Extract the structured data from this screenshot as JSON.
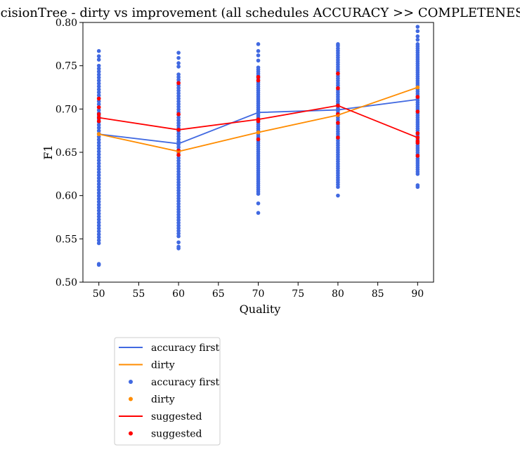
{
  "chart_data": {
    "type": "scatter",
    "title": "DecisionTree - dirty vs improvement (all schedules ACCURACY >> COMPLETENESS)",
    "xlabel": "Quality",
    "ylabel": "F1",
    "xlim": [
      48,
      92
    ],
    "ylim": [
      0.5,
      0.8
    ],
    "xticks": [
      50,
      55,
      60,
      65,
      70,
      75,
      80,
      85,
      90
    ],
    "yticks": [
      0.5,
      0.55,
      0.6,
      0.65,
      0.7,
      0.75,
      0.8
    ],
    "grid": false,
    "legend_position": "below plot, left",
    "colors": {
      "accuracy_first": "#4169e1",
      "dirty": "#ff8c00",
      "suggested": "#ff0000"
    },
    "lines": [
      {
        "name": "accuracy first",
        "color": "#4169e1",
        "x": [
          50,
          60,
          70,
          80,
          90
        ],
        "y": [
          0.671,
          0.66,
          0.696,
          0.699,
          0.711
        ]
      },
      {
        "name": "dirty",
        "color": "#ff8c00",
        "x": [
          50,
          60,
          70,
          80,
          90
        ],
        "y": [
          0.671,
          0.651,
          0.673,
          0.693,
          0.725
        ]
      },
      {
        "name": "suggested",
        "color": "#ff0000",
        "x": [
          50,
          60,
          70,
          80,
          90
        ],
        "y": [
          0.69,
          0.676,
          0.688,
          0.704,
          0.667
        ]
      }
    ],
    "scatter_accuracy_first": [
      {
        "x": 50,
        "min": 0.545,
        "max": 0.75,
        "outliers": [
          0.52,
          0.521,
          0.757,
          0.761,
          0.767
        ]
      },
      {
        "x": 60,
        "min": 0.553,
        "max": 0.74,
        "outliers": [
          0.539,
          0.541,
          0.546,
          0.749,
          0.753,
          0.759,
          0.765
        ]
      },
      {
        "x": 70,
        "min": 0.602,
        "max": 0.748,
        "outliers": [
          0.58,
          0.591,
          0.756,
          0.762,
          0.767,
          0.775
        ]
      },
      {
        "x": 80,
        "min": 0.61,
        "max": 0.77,
        "outliers": [
          0.6,
          0.773,
          0.775
        ]
      },
      {
        "x": 90,
        "min": 0.625,
        "max": 0.775,
        "outliers": [
          0.61,
          0.612,
          0.78,
          0.784,
          0.79,
          0.795
        ]
      }
    ],
    "scatter_dirty": [
      {
        "x": 50,
        "y": 0.671
      },
      {
        "x": 60,
        "y": 0.651
      },
      {
        "x": 70,
        "y": 0.673
      },
      {
        "x": 80,
        "y": 0.693
      },
      {
        "x": 90,
        "y": 0.725
      }
    ],
    "scatter_suggested": [
      {
        "x": 50,
        "y": [
          0.686,
          0.69,
          0.694,
          0.702,
          0.712
        ]
      },
      {
        "x": 60,
        "y": [
          0.647,
          0.652,
          0.676,
          0.694,
          0.73
        ]
      },
      {
        "x": 70,
        "y": [
          0.665,
          0.686,
          0.688,
          0.733,
          0.737
        ]
      },
      {
        "x": 80,
        "y": [
          0.667,
          0.684,
          0.694,
          0.704,
          0.724,
          0.741
        ]
      },
      {
        "x": 90,
        "y": [
          0.646,
          0.661,
          0.663,
          0.667,
          0.672,
          0.697,
          0.714
        ]
      }
    ],
    "legend": [
      {
        "label": "accuracy first",
        "kind": "line",
        "color": "#4169e1"
      },
      {
        "label": "dirty",
        "kind": "line",
        "color": "#ff8c00"
      },
      {
        "label": "accuracy first",
        "kind": "point",
        "color": "#4169e1"
      },
      {
        "label": "dirty",
        "kind": "point",
        "color": "#ff8c00"
      },
      {
        "label": "suggested",
        "kind": "line",
        "color": "#ff0000"
      },
      {
        "label": "suggested",
        "kind": "point",
        "color": "#ff0000"
      }
    ]
  }
}
